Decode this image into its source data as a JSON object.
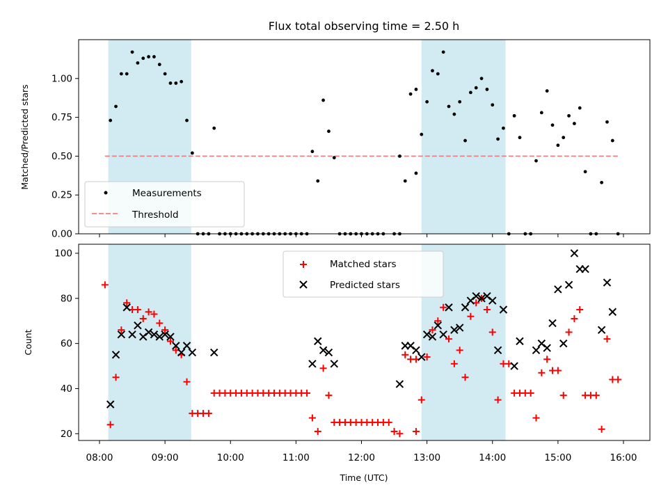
{
  "figure": {
    "title": "Flux total observing time = 2.50 h",
    "xlabel": "Time (UTC)"
  },
  "colors": {
    "band": "#add8e6",
    "measure": "#000000",
    "threshold": "#f08080",
    "matched": "#ff0000",
    "predicted": "#000000"
  },
  "chart_data": [
    {
      "type": "scatter",
      "ylabel": "Matched/Predicted stars",
      "xlim": [
        "08:00",
        "16:00"
      ],
      "ylim": [
        0,
        1.25
      ],
      "x_ticks": [
        "08:00",
        "09:00",
        "10:00",
        "11:00",
        "12:00",
        "13:00",
        "14:00",
        "15:00",
        "16:00"
      ],
      "y_ticks": [
        "0.00",
        "0.25",
        "0.50",
        "0.75",
        "1.00"
      ],
      "legend_position": "lower-left",
      "shaded_intervals": [
        [
          "08:08",
          "09:24"
        ],
        [
          "12:55",
          "14:12"
        ]
      ],
      "threshold": {
        "name": "Threshold",
        "value": 0.5,
        "x_range": [
          "08:05",
          "15:55"
        ]
      },
      "series": [
        {
          "name": "Measurements",
          "marker": "dot",
          "points": [
            [
              "08:10",
              0.73
            ],
            [
              "08:15",
              0.82
            ],
            [
              "08:20",
              1.03
            ],
            [
              "08:25",
              1.03
            ],
            [
              "08:30",
              1.17
            ],
            [
              "08:35",
              1.1
            ],
            [
              "08:40",
              1.13
            ],
            [
              "08:45",
              1.14
            ],
            [
              "08:50",
              1.14
            ],
            [
              "08:55",
              1.09
            ],
            [
              "09:00",
              1.03
            ],
            [
              "09:05",
              0.97
            ],
            [
              "09:10",
              0.97
            ],
            [
              "09:15",
              0.98
            ],
            [
              "09:20",
              0.73
            ],
            [
              "09:25",
              0.52
            ],
            [
              "09:30",
              0
            ],
            [
              "09:35",
              0
            ],
            [
              "09:40",
              0
            ],
            [
              "09:50",
              0
            ],
            [
              "09:55",
              0
            ],
            [
              "10:00",
              0
            ],
            [
              "10:05",
              0
            ],
            [
              "10:10",
              0
            ],
            [
              "10:15",
              0
            ],
            [
              "10:20",
              0
            ],
            [
              "10:25",
              0
            ],
            [
              "10:30",
              0
            ],
            [
              "10:35",
              0
            ],
            [
              "10:40",
              0
            ],
            [
              "10:45",
              0
            ],
            [
              "10:50",
              0
            ],
            [
              "10:55",
              0
            ],
            [
              "11:00",
              0
            ],
            [
              "11:05",
              0
            ],
            [
              "11:10",
              0
            ],
            [
              "09:45",
              0.68
            ],
            [
              "11:15",
              0.53
            ],
            [
              "11:20",
              0.34
            ],
            [
              "11:25",
              0.86
            ],
            [
              "11:30",
              0.66
            ],
            [
              "11:35",
              0.49
            ],
            [
              "11:40",
              0
            ],
            [
              "11:45",
              0
            ],
            [
              "11:50",
              0
            ],
            [
              "11:55",
              0
            ],
            [
              "12:00",
              0
            ],
            [
              "12:05",
              0
            ],
            [
              "12:10",
              0
            ],
            [
              "12:15",
              0
            ],
            [
              "12:20",
              0
            ],
            [
              "12:30",
              0
            ],
            [
              "12:35",
              0
            ],
            [
              "12:35",
              0.5
            ],
            [
              "12:40",
              0.34
            ],
            [
              "12:45",
              0.9
            ],
            [
              "12:50",
              0.93
            ],
            [
              "12:50",
              0.39
            ],
            [
              "12:55",
              0.64
            ],
            [
              "13:00",
              0.85
            ],
            [
              "13:05",
              1.05
            ],
            [
              "13:10",
              1.03
            ],
            [
              "13:15",
              1.17
            ],
            [
              "13:20",
              0.82
            ],
            [
              "13:25",
              0.77
            ],
            [
              "13:30",
              0.85
            ],
            [
              "13:35",
              0.6
            ],
            [
              "13:40",
              0.91
            ],
            [
              "13:45",
              0.94
            ],
            [
              "13:50",
              1.0
            ],
            [
              "13:55",
              0.93
            ],
            [
              "14:00",
              0.83
            ],
            [
              "14:05",
              0.61
            ],
            [
              "14:10",
              0.68
            ],
            [
              "14:15",
              0
            ],
            [
              "14:25",
              0.62
            ],
            [
              "14:20",
              0.76
            ],
            [
              "14:30",
              0
            ],
            [
              "14:35",
              0
            ],
            [
              "14:40",
              0.47
            ],
            [
              "14:45",
              0.78
            ],
            [
              "14:50",
              0.92
            ],
            [
              "14:55",
              0.7
            ],
            [
              "15:00",
              0.57
            ],
            [
              "15:05",
              0.62
            ],
            [
              "15:10",
              0.76
            ],
            [
              "15:15",
              0.71
            ],
            [
              "15:20",
              0.81
            ],
            [
              "15:25",
              0.4
            ],
            [
              "15:30",
              0
            ],
            [
              "15:35",
              0
            ],
            [
              "15:40",
              0.33
            ],
            [
              "15:45",
              0.72
            ],
            [
              "15:50",
              0.6
            ],
            [
              "15:55",
              0
            ]
          ]
        }
      ]
    },
    {
      "type": "scatter",
      "ylabel": "Count",
      "xlim": [
        "08:00",
        "16:00"
      ],
      "ylim": [
        17,
        104
      ],
      "x_ticks": [
        "08:00",
        "09:00",
        "10:00",
        "11:00",
        "12:00",
        "13:00",
        "14:00",
        "15:00",
        "16:00"
      ],
      "y_ticks": [
        "20",
        "40",
        "60",
        "80",
        "100"
      ],
      "legend_position": "top-center",
      "shaded_intervals": [
        [
          "08:08",
          "09:24"
        ],
        [
          "12:55",
          "14:12"
        ]
      ],
      "series": [
        {
          "name": "Matched stars",
          "marker": "plus",
          "points": [
            [
              "08:05",
              86
            ],
            [
              "08:10",
              24
            ],
            [
              "08:15",
              45
            ],
            [
              "08:20",
              66
            ],
            [
              "08:25",
              78
            ],
            [
              "08:30",
              75
            ],
            [
              "08:35",
              75
            ],
            [
              "08:40",
              71
            ],
            [
              "08:45",
              74
            ],
            [
              "08:50",
              73
            ],
            [
              "08:55",
              69
            ],
            [
              "09:00",
              66
            ],
            [
              "09:05",
              61
            ],
            [
              "09:10",
              57
            ],
            [
              "09:15",
              55
            ],
            [
              "09:20",
              43
            ],
            [
              "09:25",
              29
            ],
            [
              "09:30",
              29
            ],
            [
              "09:35",
              29
            ],
            [
              "09:40",
              29
            ],
            [
              "09:45",
              38
            ],
            [
              "09:50",
              38
            ],
            [
              "09:55",
              38
            ],
            [
              "10:00",
              38
            ],
            [
              "10:05",
              38
            ],
            [
              "10:10",
              38
            ],
            [
              "10:15",
              38
            ],
            [
              "10:20",
              38
            ],
            [
              "10:25",
              38
            ],
            [
              "10:30",
              38
            ],
            [
              "10:35",
              38
            ],
            [
              "10:40",
              38
            ],
            [
              "10:45",
              38
            ],
            [
              "10:50",
              38
            ],
            [
              "10:55",
              38
            ],
            [
              "11:00",
              38
            ],
            [
              "11:05",
              38
            ],
            [
              "11:10",
              38
            ],
            [
              "11:15",
              27
            ],
            [
              "11:20",
              21
            ],
            [
              "11:25",
              49
            ],
            [
              "11:30",
              37
            ],
            [
              "11:35",
              25
            ],
            [
              "11:40",
              25
            ],
            [
              "11:45",
              25
            ],
            [
              "11:50",
              25
            ],
            [
              "11:55",
              25
            ],
            [
              "12:00",
              25
            ],
            [
              "12:05",
              25
            ],
            [
              "12:10",
              25
            ],
            [
              "12:15",
              25
            ],
            [
              "12:20",
              25
            ],
            [
              "12:25",
              25
            ],
            [
              "12:30",
              21
            ],
            [
              "12:35",
              20
            ],
            [
              "12:40",
              55
            ],
            [
              "12:45",
              53
            ],
            [
              "12:50",
              53
            ],
            [
              "12:50",
              21
            ],
            [
              "12:55",
              35
            ],
            [
              "13:00",
              54
            ],
            [
              "13:05",
              66
            ],
            [
              "13:10",
              70
            ],
            [
              "13:15",
              76
            ],
            [
              "13:20",
              62
            ],
            [
              "13:25",
              51
            ],
            [
              "13:30",
              57
            ],
            [
              "13:35",
              45
            ],
            [
              "13:40",
              72
            ],
            [
              "13:45",
              78
            ],
            [
              "13:50",
              80
            ],
            [
              "13:55",
              75
            ],
            [
              "14:00",
              65
            ],
            [
              "14:05",
              35
            ],
            [
              "14:10",
              51
            ],
            [
              "14:15",
              51
            ],
            [
              "14:20",
              38
            ],
            [
              "14:25",
              38
            ],
            [
              "14:30",
              38
            ],
            [
              "14:35",
              38
            ],
            [
              "14:40",
              27
            ],
            [
              "14:45",
              47
            ],
            [
              "14:50",
              53
            ],
            [
              "14:55",
              48
            ],
            [
              "15:00",
              48
            ],
            [
              "15:05",
              37
            ],
            [
              "15:10",
              65
            ],
            [
              "15:15",
              71
            ],
            [
              "15:20",
              75
            ],
            [
              "15:25",
              37
            ],
            [
              "15:30",
              37
            ],
            [
              "15:35",
              37
            ],
            [
              "15:40",
              22
            ],
            [
              "15:45",
              62
            ],
            [
              "15:50",
              44
            ],
            [
              "15:55",
              44
            ]
          ]
        },
        {
          "name": "Predicted stars",
          "marker": "x",
          "points": [
            [
              "08:10",
              33
            ],
            [
              "08:15",
              55
            ],
            [
              "08:20",
              64
            ],
            [
              "08:25",
              76
            ],
            [
              "08:30",
              64
            ],
            [
              "08:35",
              68
            ],
            [
              "08:40",
              63
            ],
            [
              "08:45",
              65
            ],
            [
              "08:50",
              64
            ],
            [
              "08:55",
              63
            ],
            [
              "09:00",
              64
            ],
            [
              "09:05",
              63
            ],
            [
              "09:10",
              59
            ],
            [
              "09:15",
              56
            ],
            [
              "09:20",
              59
            ],
            [
              "09:25",
              56
            ],
            [
              "09:45",
              56
            ],
            [
              "11:15",
              51
            ],
            [
              "11:20",
              61
            ],
            [
              "11:25",
              57
            ],
            [
              "11:30",
              56
            ],
            [
              "11:35",
              51
            ],
            [
              "12:35",
              42
            ],
            [
              "12:40",
              59
            ],
            [
              "12:45",
              59
            ],
            [
              "12:50",
              57
            ],
            [
              "12:55",
              54
            ],
            [
              "13:00",
              64
            ],
            [
              "13:05",
              63
            ],
            [
              "13:10",
              68
            ],
            [
              "13:15",
              64
            ],
            [
              "13:20",
              76
            ],
            [
              "13:25",
              66
            ],
            [
              "13:30",
              67
            ],
            [
              "13:35",
              76
            ],
            [
              "13:40",
              79
            ],
            [
              "13:45",
              81
            ],
            [
              "13:50",
              80
            ],
            [
              "13:55",
              81
            ],
            [
              "14:00",
              79
            ],
            [
              "14:05",
              57
            ],
            [
              "14:10",
              75
            ],
            [
              "14:20",
              50
            ],
            [
              "14:25",
              61
            ],
            [
              "14:40",
              57
            ],
            [
              "14:45",
              60
            ],
            [
              "14:50",
              58
            ],
            [
              "14:55",
              69
            ],
            [
              "15:00",
              84
            ],
            [
              "15:05",
              60
            ],
            [
              "15:10",
              86
            ],
            [
              "15:15",
              100
            ],
            [
              "15:20",
              93
            ],
            [
              "15:25",
              93
            ],
            [
              "15:40",
              66
            ],
            [
              "15:45",
              87
            ],
            [
              "15:50",
              74
            ]
          ]
        }
      ]
    }
  ]
}
